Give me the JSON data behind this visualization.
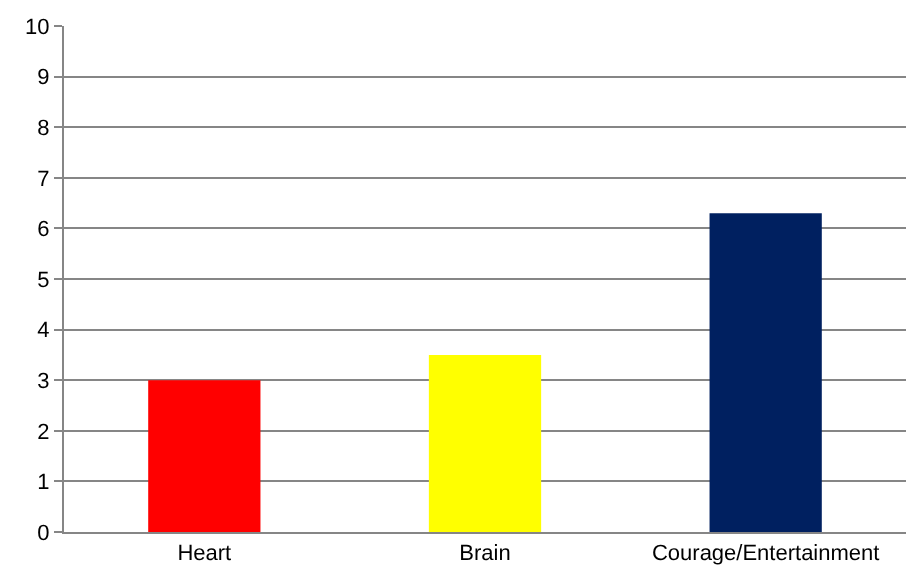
{
  "chart_data": {
    "type": "bar",
    "categories": [
      "Heart",
      "Brain",
      "Courage/Entertainment"
    ],
    "values": [
      3,
      3.5,
      6.3
    ],
    "colors": [
      "#ff0000",
      "#ffff00",
      "#002060"
    ],
    "ylim": [
      0,
      10
    ],
    "yticks": [
      0,
      1,
      2,
      3,
      4,
      5,
      6,
      7,
      8,
      9,
      10
    ],
    "grid": "y",
    "legend": false
  }
}
